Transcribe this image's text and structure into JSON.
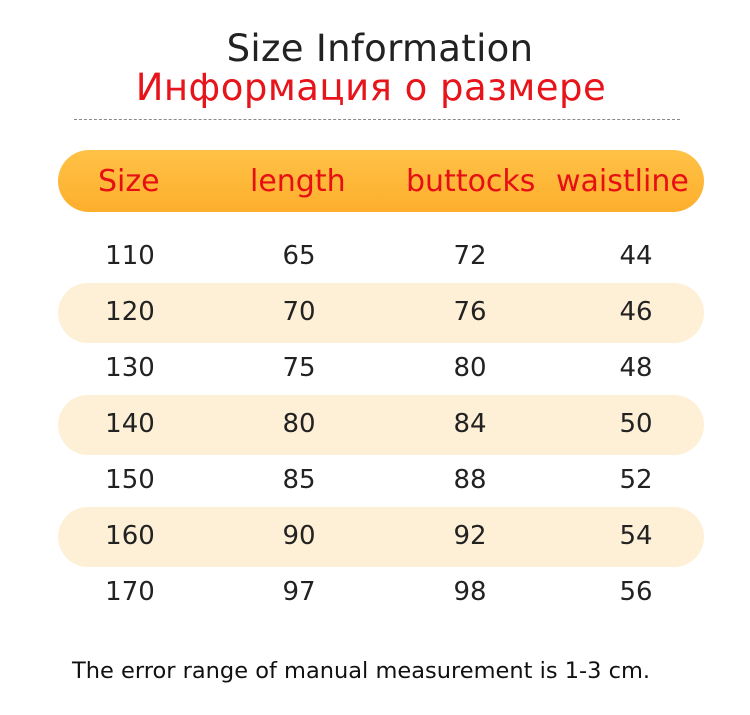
{
  "title_en": "Size Information",
  "title_ru": "Информация о размере",
  "header": {
    "size": "Size",
    "length": "length",
    "buttocks": "buttocks",
    "waistline": "waistline"
  },
  "rows": [
    {
      "size": "110",
      "length": "65",
      "buttocks": "72",
      "waistline": "44",
      "shaded": false
    },
    {
      "size": "120",
      "length": "70",
      "buttocks": "76",
      "waistline": "46",
      "shaded": true
    },
    {
      "size": "130",
      "length": "75",
      "buttocks": "80",
      "waistline": "48",
      "shaded": false
    },
    {
      "size": "140",
      "length": "80",
      "buttocks": "84",
      "waistline": "50",
      "shaded": true
    },
    {
      "size": "150",
      "length": "85",
      "buttocks": "88",
      "waistline": "52",
      "shaded": false
    },
    {
      "size": "160",
      "length": "90",
      "buttocks": "92",
      "waistline": "54",
      "shaded": true
    },
    {
      "size": "170",
      "length": "97",
      "buttocks": "98",
      "waistline": "56",
      "shaded": false
    }
  ],
  "note": "The error range of manual measurement is 1-3 cm.",
  "colors": {
    "header_bar": "#fdb535",
    "header_text": "#e60f14",
    "title_ru": "#e8141b",
    "stripe": "#fdf0d6"
  }
}
